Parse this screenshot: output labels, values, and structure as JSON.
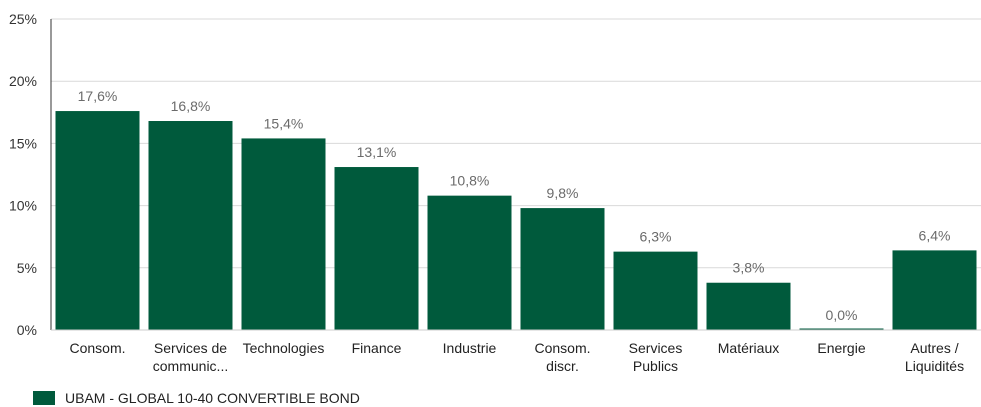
{
  "chart_data": {
    "type": "bar",
    "categories": [
      [
        "Consom."
      ],
      [
        "Services de",
        "communic..."
      ],
      [
        "Technologies"
      ],
      [
        "Finance"
      ],
      [
        "Industrie"
      ],
      [
        "Consom.",
        "discr."
      ],
      [
        "Services",
        "Publics"
      ],
      [
        "Matériaux"
      ],
      [
        "Energie"
      ],
      [
        "Autres /",
        "Liquidités"
      ]
    ],
    "series": [
      {
        "name": "UBAM - GLOBAL 10-40 CONVERTIBLE BOND",
        "values": [
          17.6,
          16.8,
          15.4,
          13.1,
          10.8,
          9.8,
          6.3,
          3.8,
          0.0,
          6.4
        ],
        "labels": [
          "17,6%",
          "16,8%",
          "15,4%",
          "13,1%",
          "10,8%",
          "9,8%",
          "6,3%",
          "3,8%",
          "0,0%",
          "6,4%"
        ],
        "color": "#005a3c"
      }
    ],
    "ylim": [
      0,
      25
    ],
    "yticks": [
      0,
      5,
      10,
      15,
      20,
      25
    ],
    "ytick_labels": [
      "0%",
      "5%",
      "10%",
      "15%",
      "20%",
      "25%"
    ],
    "grid": true,
    "legend_position": "bottom-left",
    "title": "",
    "xlabel": "",
    "ylabel": ""
  }
}
